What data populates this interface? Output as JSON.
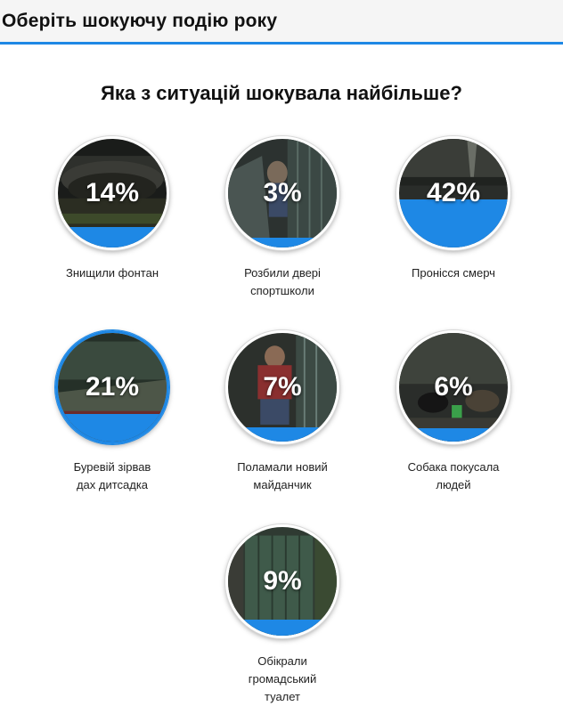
{
  "header": {
    "title": "Оберіть шокуючу подію року"
  },
  "question": "Яка з ситуацій шокувала найбільше?",
  "colors": {
    "accent": "#1e88e5",
    "header_bg": "#f5f5f5"
  },
  "options": [
    {
      "label": "Знищили фонтан",
      "percent_text": "14%",
      "percent": 14,
      "selected": false
    },
    {
      "label": "Розбили двері спортшколи",
      "percent_text": "3%",
      "percent": 3,
      "selected": false
    },
    {
      "label": "Пронісся смерч",
      "percent_text": "42%",
      "percent": 42,
      "selected": false
    },
    {
      "label": "Буревій зірвав дах дитсадка",
      "percent_text": "21%",
      "percent": 21,
      "selected": true
    },
    {
      "label": "Поламали новий майданчик",
      "percent_text": "7%",
      "percent": 7,
      "selected": false
    },
    {
      "label": "Собака покусала людей",
      "percent_text": "6%",
      "percent": 6,
      "selected": false
    },
    {
      "label": "Обікрали громадський туалет",
      "percent_text": "9%",
      "percent": 9,
      "selected": false
    }
  ]
}
